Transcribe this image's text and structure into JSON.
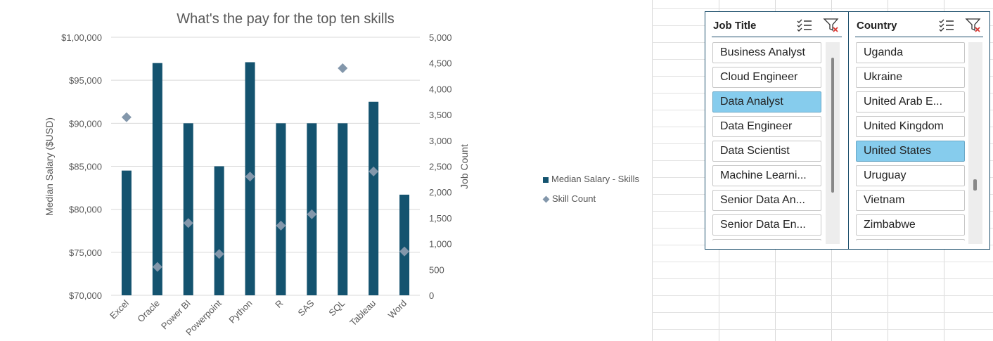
{
  "chart_data": {
    "type": "bar",
    "title": "What's the pay for the top ten skills",
    "ylabel": "Median Salary ($USD)",
    "y2label": "Job Count",
    "categories": [
      "Excel",
      "Oracle",
      "Power BI",
      "Powerpoint",
      "Python",
      "R",
      "SAS",
      "SQL",
      "Tableau",
      "Word"
    ],
    "ylim": [
      70000,
      100000
    ],
    "y2lim": [
      0,
      5000
    ],
    "yticks": [
      "$70,000",
      "$75,000",
      "$80,000",
      "$85,000",
      "$90,000",
      "$95,000",
      "$1,00,000"
    ],
    "y2ticks": [
      "0",
      "500",
      "1,000",
      "1,500",
      "2,000",
      "2,500",
      "3,000",
      "3,500",
      "4,000",
      "4,500",
      "5,000"
    ],
    "series": [
      {
        "name": "Median Salary - Skills",
        "kind": "bar",
        "axis": "primary",
        "color": "#14536f",
        "values": [
          84500,
          97000,
          90000,
          85000,
          97100,
          90000,
          90000,
          90000,
          92500,
          81700
        ]
      },
      {
        "name": "Skill Count",
        "kind": "scatter",
        "axis": "secondary",
        "color": "#8397ab",
        "values": [
          3450,
          550,
          1400,
          800,
          2300,
          1350,
          1570,
          4400,
          2400,
          850
        ]
      }
    ],
    "legend_position": "right",
    "grid": true
  },
  "slicers": {
    "job_title": {
      "title": "Job Title",
      "items": [
        "Business Analyst",
        "Cloud Engineer",
        "Data Analyst",
        "Data Engineer",
        "Data Scientist",
        "Machine Learni...",
        "Senior Data An...",
        "Senior Data En..."
      ],
      "selected": "Data Analyst"
    },
    "country": {
      "title": "Country",
      "items": [
        "Uganda",
        "Ukraine",
        "United Arab E...",
        "United Kingdom",
        "United States",
        "Uruguay",
        "Vietnam",
        "Zimbabwe"
      ],
      "selected": "United States"
    }
  },
  "icons": {
    "multi_select": "multi-select-icon",
    "clear_filter": "clear-filter-icon"
  }
}
